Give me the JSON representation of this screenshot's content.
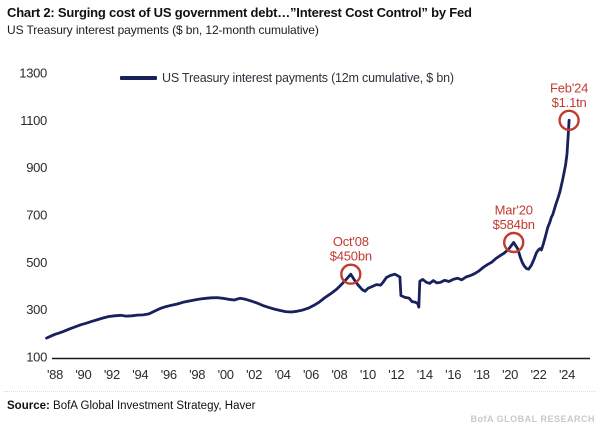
{
  "source": {
    "prefix": "Source:",
    "text": " BofA Global Investment Strategy, Haver"
  },
  "watermark": "BofA GLOBAL RESEARCH",
  "colors": {
    "line": "#18215d",
    "annotation": "#c23b2e",
    "axis": "#1a1a1a",
    "tick_text": "#2b2b2b",
    "watermark": "#c9c9c9"
  },
  "chart_data": {
    "type": "line",
    "title": "Chart 2: Surging cost of US government debt…”Interest Cost Control” by Fed",
    "subtitle": "US Treasury interest payments ($ bn, 12-month cumulative)",
    "xlabel": "",
    "ylabel": "US Treasury interest payments ($ bn, 12-month cumulative)",
    "y_ticks": [
      100,
      300,
      500,
      700,
      900,
      1100,
      1300
    ],
    "ylim": [
      100,
      1300
    ],
    "x_tick_years": [
      1988,
      1990,
      1992,
      1994,
      1996,
      1998,
      2000,
      2002,
      2004,
      2006,
      2008,
      2010,
      2012,
      2014,
      2016,
      2018,
      2020,
      2022,
      2024
    ],
    "x_tick_labels": [
      "'88",
      "'90",
      "'92",
      "'94",
      "'96",
      "'98",
      "'00",
      "'02",
      "'04",
      "'06",
      "'08",
      "'10",
      "'12",
      "'14",
      "'16",
      "'18",
      "'20",
      "'22",
      "'24"
    ],
    "xlim_years": [
      1987.3,
      2025.5
    ],
    "grid": false,
    "legend_position": "top-center",
    "series": [
      {
        "name": "US Treasury interest payments (12m cumulative, $ bn)",
        "points": [
          [
            1987.4,
            180
          ],
          [
            1987.7,
            188
          ],
          [
            1988.0,
            196
          ],
          [
            1988.3,
            202
          ],
          [
            1988.6,
            208
          ],
          [
            1989.0,
            218
          ],
          [
            1989.4,
            227
          ],
          [
            1989.8,
            236
          ],
          [
            1990.2,
            243
          ],
          [
            1990.6,
            251
          ],
          [
            1991.0,
            258
          ],
          [
            1991.4,
            265
          ],
          [
            1991.8,
            271
          ],
          [
            1992.2,
            274
          ],
          [
            1992.6,
            276
          ],
          [
            1993.0,
            273
          ],
          [
            1993.4,
            274
          ],
          [
            1993.8,
            277
          ],
          [
            1994.2,
            278
          ],
          [
            1994.6,
            282
          ],
          [
            1995.0,
            294
          ],
          [
            1995.4,
            305
          ],
          [
            1995.8,
            313
          ],
          [
            1996.2,
            319
          ],
          [
            1996.6,
            324
          ],
          [
            1997.0,
            331
          ],
          [
            1997.4,
            336
          ],
          [
            1997.8,
            341
          ],
          [
            1998.2,
            345
          ],
          [
            1998.6,
            348
          ],
          [
            1999.0,
            350
          ],
          [
            1999.4,
            351
          ],
          [
            1999.8,
            348
          ],
          [
            2000.2,
            344
          ],
          [
            2000.6,
            341
          ],
          [
            2001.0,
            348
          ],
          [
            2001.4,
            344
          ],
          [
            2001.8,
            336
          ],
          [
            2002.2,
            328
          ],
          [
            2002.6,
            318
          ],
          [
            2003.0,
            310
          ],
          [
            2003.4,
            303
          ],
          [
            2003.8,
            297
          ],
          [
            2004.2,
            292
          ],
          [
            2004.6,
            290
          ],
          [
            2005.0,
            293
          ],
          [
            2005.4,
            298
          ],
          [
            2005.8,
            306
          ],
          [
            2006.2,
            318
          ],
          [
            2006.6,
            333
          ],
          [
            2007.0,
            352
          ],
          [
            2007.4,
            368
          ],
          [
            2007.8,
            386
          ],
          [
            2008.2,
            410
          ],
          [
            2008.5,
            430
          ],
          [
            2008.8,
            450
          ],
          [
            2009.0,
            430
          ],
          [
            2009.3,
            405
          ],
          [
            2009.6,
            385
          ],
          [
            2009.8,
            378
          ],
          [
            2010.0,
            390
          ],
          [
            2010.3,
            398
          ],
          [
            2010.6,
            406
          ],
          [
            2010.9,
            404
          ],
          [
            2011.1,
            418
          ],
          [
            2011.3,
            436
          ],
          [
            2011.6,
            445
          ],
          [
            2011.9,
            450
          ],
          [
            2012.1,
            443
          ],
          [
            2012.25,
            438
          ],
          [
            2012.32,
            360
          ],
          [
            2012.6,
            352
          ],
          [
            2012.9,
            349
          ],
          [
            2013.1,
            334
          ],
          [
            2013.35,
            331
          ],
          [
            2013.5,
            326
          ],
          [
            2013.58,
            311
          ],
          [
            2013.65,
            420
          ],
          [
            2013.85,
            428
          ],
          [
            2014.1,
            416
          ],
          [
            2014.35,
            411
          ],
          [
            2014.6,
            423
          ],
          [
            2014.85,
            413
          ],
          [
            2015.1,
            415
          ],
          [
            2015.4,
            424
          ],
          [
            2015.7,
            419
          ],
          [
            2016.0,
            428
          ],
          [
            2016.3,
            433
          ],
          [
            2016.6,
            426
          ],
          [
            2016.9,
            438
          ],
          [
            2017.2,
            444
          ],
          [
            2017.5,
            452
          ],
          [
            2017.8,
            463
          ],
          [
            2018.1,
            478
          ],
          [
            2018.4,
            490
          ],
          [
            2018.7,
            500
          ],
          [
            2019.0,
            516
          ],
          [
            2019.3,
            528
          ],
          [
            2019.6,
            540
          ],
          [
            2019.9,
            556
          ],
          [
            2020.1,
            572
          ],
          [
            2020.25,
            584
          ],
          [
            2020.4,
            570
          ],
          [
            2020.55,
            556
          ],
          [
            2020.7,
            524
          ],
          [
            2020.85,
            500
          ],
          [
            2021.0,
            484
          ],
          [
            2021.15,
            474
          ],
          [
            2021.3,
            471
          ],
          [
            2021.5,
            488
          ],
          [
            2021.7,
            516
          ],
          [
            2021.85,
            540
          ],
          [
            2022.0,
            553
          ],
          [
            2022.1,
            558
          ],
          [
            2022.2,
            552
          ],
          [
            2022.35,
            580
          ],
          [
            2022.5,
            614
          ],
          [
            2022.65,
            648
          ],
          [
            2022.8,
            670
          ],
          [
            2022.9,
            690
          ],
          [
            2023.0,
            702
          ],
          [
            2023.1,
            722
          ],
          [
            2023.2,
            742
          ],
          [
            2023.35,
            768
          ],
          [
            2023.5,
            798
          ],
          [
            2023.6,
            824
          ],
          [
            2023.7,
            850
          ],
          [
            2023.8,
            880
          ],
          [
            2023.9,
            912
          ],
          [
            2024.0,
            958
          ],
          [
            2024.05,
            1005
          ],
          [
            2024.1,
            1050
          ],
          [
            2024.15,
            1100
          ]
        ]
      }
    ],
    "annotations": [
      {
        "label": "Oct'08",
        "value_label": "$450bn",
        "year": 2008.8,
        "value": 450
      },
      {
        "label": "Mar'20",
        "value_label": "$584bn",
        "year": 2020.25,
        "value": 584
      },
      {
        "label": "Feb'24",
        "value_label": "$1.1tn",
        "year": 2024.15,
        "value": 1100
      }
    ]
  }
}
